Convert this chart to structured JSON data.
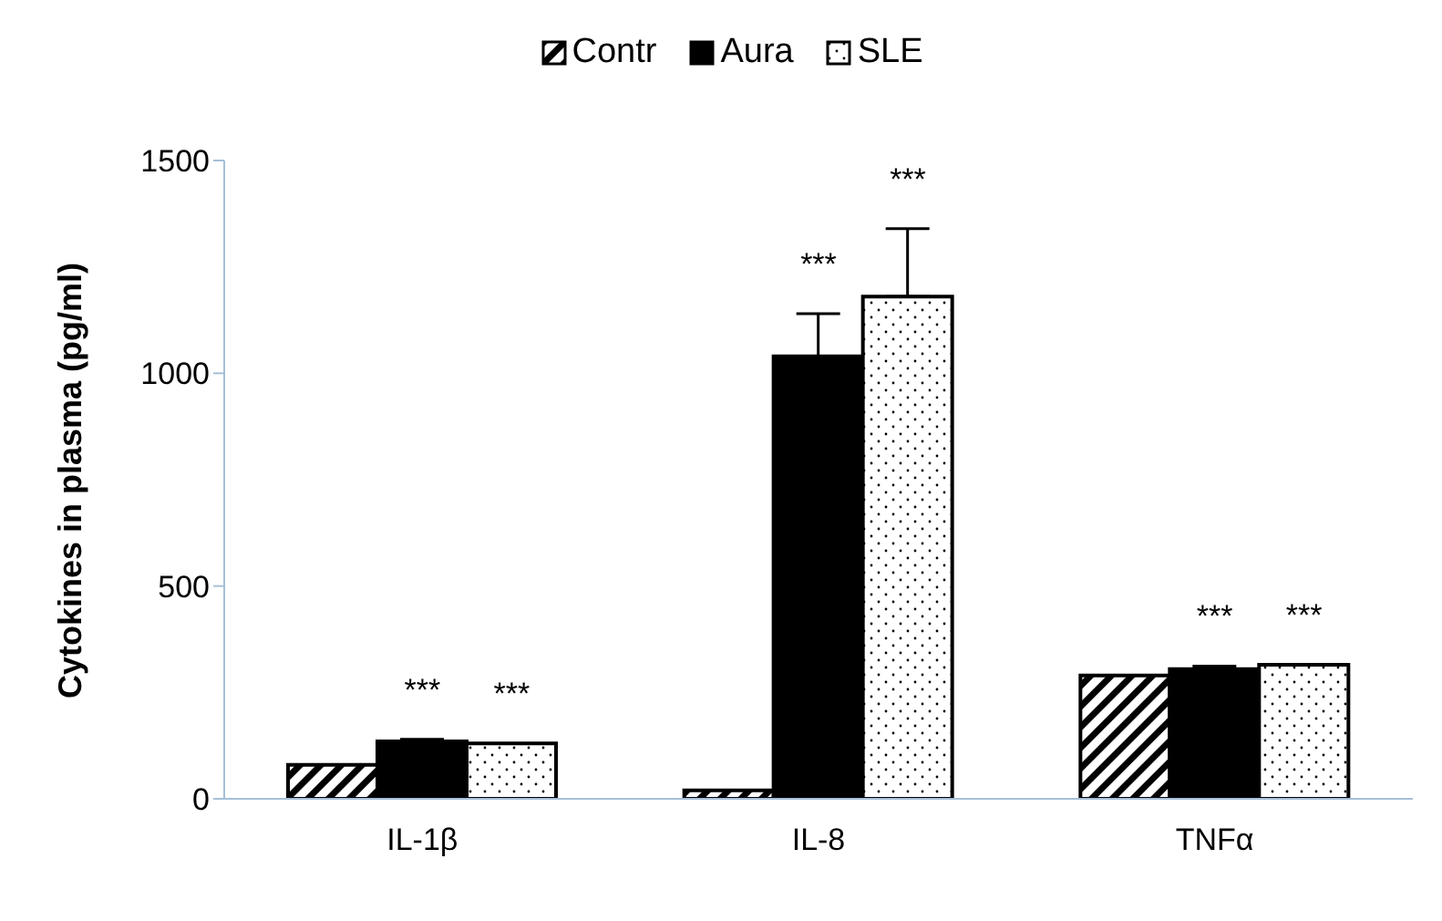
{
  "chart_data": {
    "type": "bar",
    "ylabel": "Cytokines in plasma (pg/ml)",
    "categories": [
      "IL-1β",
      "IL-8",
      "TNFα"
    ],
    "series": [
      {
        "name": "Contr",
        "color": "#000000",
        "values": [
          80,
          20,
          290
        ]
      },
      {
        "name": "Aura",
        "color": "#000000",
        "values": [
          135,
          1040,
          305
        ],
        "errors": [
          [
            135,
            140
          ],
          [
            1040,
            1140
          ],
          [
            305,
            312
          ]
        ]
      },
      {
        "name": "SLE",
        "color": "#000000",
        "values": [
          130,
          1180,
          315
        ],
        "errors": [
          null,
          [
            1180,
            1340
          ],
          null
        ]
      }
    ],
    "ylim": [
      0,
      1500
    ],
    "yticks": [
      0,
      500,
      1000,
      1500
    ],
    "grid": false,
    "legend": "top",
    "annotations": [
      "***",
      "***",
      "***",
      "***",
      "***",
      "***"
    ]
  }
}
